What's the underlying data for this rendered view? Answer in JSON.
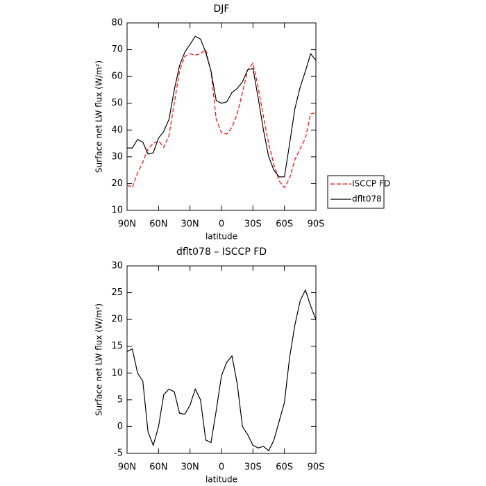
{
  "chart_data": [
    {
      "type": "line",
      "title": "DJF",
      "xlabel": "latitude",
      "ylabel": "Surface net LW flux (W/m²)",
      "x": [
        90,
        85,
        80,
        75,
        70,
        65,
        60,
        55,
        50,
        45,
        40,
        35,
        30,
        25,
        20,
        15,
        10,
        5,
        0,
        -5,
        -10,
        -15,
        -20,
        -25,
        -30,
        -35,
        -40,
        -45,
        -50,
        -55,
        -60,
        -65,
        -70,
        -75,
        -80,
        -85,
        -90
      ],
      "xlim": [
        90,
        -90
      ],
      "xticks": [
        {
          "value": 90,
          "label": "90N"
        },
        {
          "value": 60,
          "label": "60N"
        },
        {
          "value": 30,
          "label": "30N"
        },
        0,
        {
          "value": -30,
          "label": "30S"
        },
        {
          "value": -60,
          "label": "60S"
        },
        {
          "value": -90,
          "label": "90S"
        }
      ],
      "ylim": [
        10,
        80
      ],
      "yticks": [
        10,
        20,
        30,
        40,
        50,
        60,
        70,
        80
      ],
      "series": [
        {
          "name": "ISCCP FD",
          "color": "#ff0000",
          "dash": "dashed",
          "values": [
            19.5,
            18.5,
            24,
            28,
            33,
            35,
            36,
            33.5,
            38,
            50,
            62,
            67.5,
            68.5,
            68,
            68.5,
            70,
            62,
            44,
            39,
            38.5,
            41,
            46,
            54,
            62.5,
            65,
            56,
            45,
            35,
            27,
            21,
            18.5,
            22,
            29,
            33,
            37,
            46,
            46.5
          ]
        },
        {
          "name": "dflt078",
          "color": "#000000",
          "dash": "solid",
          "values": [
            33.3,
            33.3,
            36.5,
            35.5,
            31,
            31.5,
            37,
            39.5,
            44,
            55,
            64,
            69,
            72,
            75,
            74,
            69,
            62,
            51,
            50,
            50.5,
            54,
            55.5,
            58,
            62.5,
            63,
            52,
            40,
            30,
            25,
            22.5,
            22.5,
            35,
            48,
            56,
            62,
            68.5,
            66
          ]
        }
      ]
    },
    {
      "type": "line",
      "title": "dflt078 – ISCCP FD",
      "xlabel": "latitude",
      "ylabel": "Surface net LW flux (W/m²)",
      "x": [
        90,
        85,
        80,
        75,
        70,
        65,
        60,
        55,
        50,
        45,
        40,
        35,
        30,
        25,
        20,
        15,
        10,
        5,
        0,
        -5,
        -10,
        -15,
        -20,
        -25,
        -30,
        -35,
        -40,
        -45,
        -50,
        -55,
        -60,
        -65,
        -70,
        -75,
        -80,
        -85,
        -90
      ],
      "xlim": [
        90,
        -90
      ],
      "xticks": [
        {
          "value": 90,
          "label": "90N"
        },
        {
          "value": 60,
          "label": "60N"
        },
        {
          "value": 30,
          "label": "30N"
        },
        0,
        {
          "value": -30,
          "label": "30S"
        },
        {
          "value": -60,
          "label": "60S"
        },
        {
          "value": -90,
          "label": "90S"
        }
      ],
      "ylim": [
        -5,
        30
      ],
      "yticks": [
        -5,
        0,
        5,
        10,
        15,
        20,
        25,
        30
      ],
      "series": [
        {
          "name": null,
          "color": "#000000",
          "dash": "solid",
          "values": [
            14,
            14.5,
            10,
            8.5,
            -1,
            -3.5,
            0,
            6,
            7,
            6.5,
            2.5,
            2.3,
            4,
            7,
            5,
            -2.5,
            -3,
            3,
            9.5,
            12,
            13.2,
            8,
            0,
            -1.5,
            -3.5,
            -4,
            -3.7,
            -4.5,
            -2.5,
            1,
            4.5,
            13,
            19,
            23.5,
            25.5,
            22.5,
            20
          ]
        }
      ]
    }
  ]
}
